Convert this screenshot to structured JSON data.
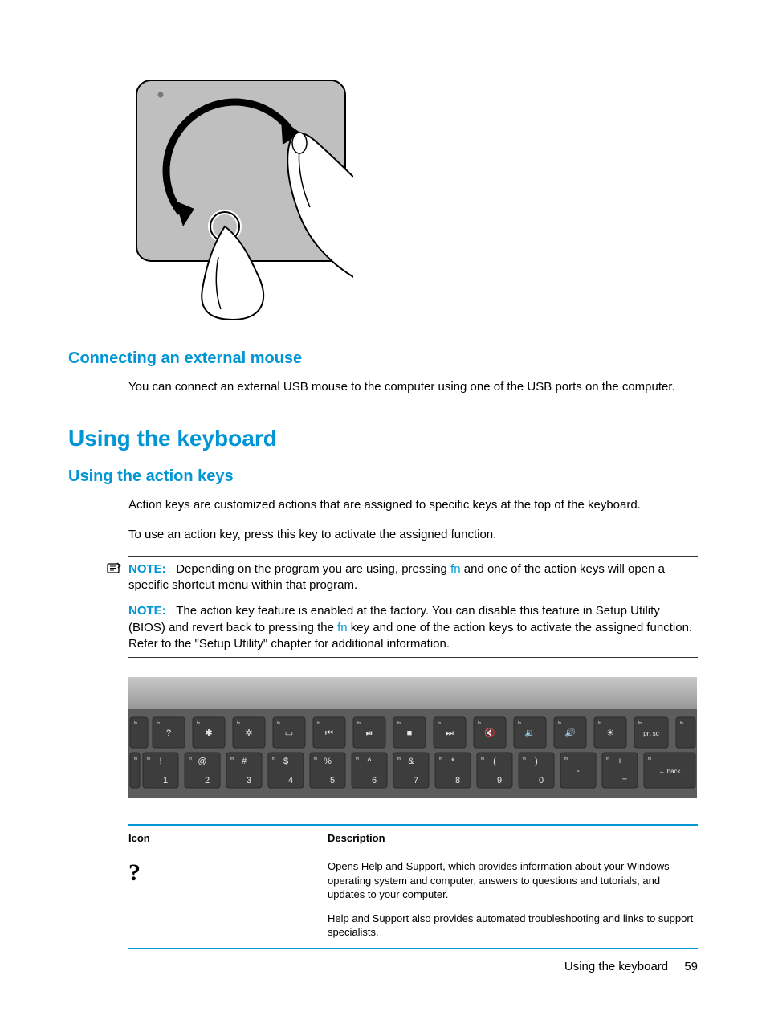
{
  "colors": {
    "accent": "#0096d6",
    "text": "#000000",
    "rule": "#333333",
    "background": "#ffffff"
  },
  "illustration": {
    "name": "touchpad-rotate-gesture"
  },
  "section1": {
    "heading": "Connecting an external mouse",
    "body": "You can connect an external USB mouse to the computer using one of the USB ports on the computer."
  },
  "section2": {
    "heading": "Using the keyboard"
  },
  "section3": {
    "heading": "Using the action keys",
    "p1": "Action keys are customized actions that are assigned to specific keys at the top of the keyboard.",
    "p2": "To use an action key, press this key to activate the assigned function."
  },
  "note": {
    "label": "NOTE:",
    "p1a": "Depending on the program you are using, pressing ",
    "p1_fn": "fn",
    "p1b": " and one of the action keys will open a specific shortcut menu within that program.",
    "p2a": "The action key feature is enabled at the factory. You can disable this feature in Setup Utility (BIOS) and revert back to pressing the ",
    "p2_fn": "fn",
    "p2b": " key and one of the action keys to activate the assigned function. Refer to the \"Setup Utility\" chapter for additional information."
  },
  "keyboard": {
    "name": "function-key-row-photo",
    "fn_row": [
      "?",
      "✱",
      "✲",
      "▭",
      "⏮",
      "⏯",
      "■",
      "⏭",
      "🔇",
      "🔉",
      "🔊",
      "☀",
      "prt sc"
    ],
    "num_row": [
      {
        "top": "!",
        "bot": "1"
      },
      {
        "top": "@",
        "bot": "2"
      },
      {
        "top": "#",
        "bot": "3"
      },
      {
        "top": "$",
        "bot": "4"
      },
      {
        "top": "%",
        "bot": "5"
      },
      {
        "top": "^",
        "bot": "6"
      },
      {
        "top": "&",
        "bot": "7"
      },
      {
        "top": "*",
        "bot": "8"
      },
      {
        "top": "(",
        "bot": "9"
      },
      {
        "top": ")",
        "bot": "0"
      },
      {
        "top": "-",
        "bot": ""
      },
      {
        "top": "+",
        "bot": "="
      }
    ]
  },
  "table": {
    "col1": "Icon",
    "col2": "Description",
    "rows": [
      {
        "icon": "help-question-icon",
        "glyph": "?",
        "desc_p1": "Opens Help and Support, which provides information about your Windows operating system and computer, answers to questions and tutorials, and updates to your computer.",
        "desc_p2": "Help and Support also provides automated troubleshooting and links to support specialists."
      }
    ]
  },
  "footer": {
    "text": "Using the keyboard",
    "page": "59"
  }
}
